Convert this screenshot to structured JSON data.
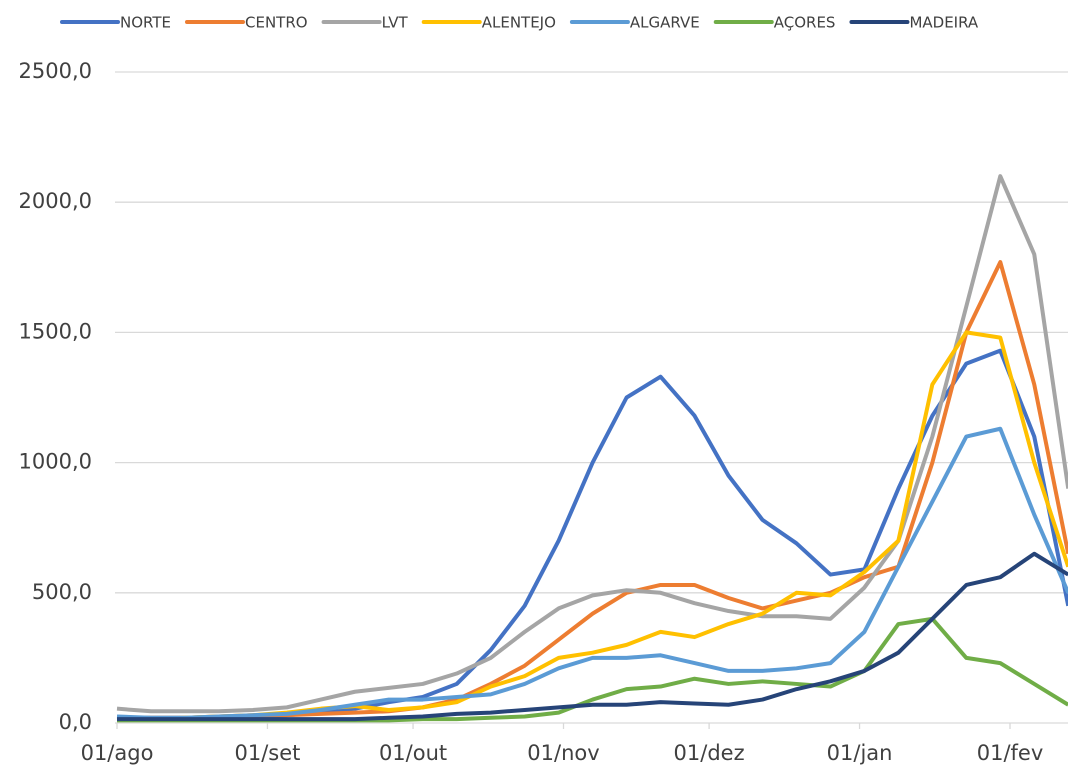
{
  "chart_data": {
    "type": "line",
    "x": [
      0,
      7,
      14,
      21,
      28,
      35,
      42,
      49,
      56,
      63,
      70,
      77,
      84,
      91,
      98,
      105,
      112,
      119,
      126,
      133,
      140,
      147,
      154,
      161,
      168,
      175,
      182,
      189,
      196
    ],
    "xlim": [
      0,
      196
    ],
    "xticks": [
      {
        "value": 0,
        "label": "01/ago"
      },
      {
        "value": 31,
        "label": "01/set"
      },
      {
        "value": 61,
        "label": "01/out"
      },
      {
        "value": 92,
        "label": "01/nov"
      },
      {
        "value": 122,
        "label": "01/dez"
      },
      {
        "value": 153,
        "label": "01/jan"
      },
      {
        "value": 184,
        "label": "01/fev"
      }
    ],
    "ylim": [
      0,
      2500
    ],
    "yticks": [
      {
        "value": 0,
        "label": "0,0"
      },
      {
        "value": 500,
        "label": "500,0"
      },
      {
        "value": 1000,
        "label": "1000,0"
      },
      {
        "value": 1500,
        "label": "1500,0"
      },
      {
        "value": 2000,
        "label": "2000,0"
      },
      {
        "value": 2500,
        "label": "2500,0"
      }
    ],
    "grid": true,
    "legend": "top",
    "series": [
      {
        "name": "NORTE",
        "color": "#4472c4",
        "values": [
          20,
          20,
          20,
          20,
          25,
          30,
          40,
          55,
          80,
          100,
          150,
          280,
          450,
          700,
          1000,
          1250,
          1330,
          1180,
          950,
          780,
          690,
          570,
          590,
          900,
          1180,
          1380,
          1430,
          1100,
          450
        ]
      },
      {
        "name": "CENTRO",
        "color": "#ed7d31",
        "values": [
          20,
          20,
          20,
          25,
          30,
          30,
          35,
          40,
          45,
          60,
          90,
          150,
          220,
          320,
          420,
          500,
          530,
          530,
          480,
          440,
          470,
          500,
          560,
          600,
          1000,
          1500,
          1770,
          1300,
          650
        ]
      },
      {
        "name": "LVT",
        "color": "#a5a5a5",
        "values": [
          55,
          45,
          45,
          45,
          50,
          60,
          90,
          120,
          135,
          150,
          190,
          250,
          350,
          440,
          490,
          510,
          500,
          460,
          430,
          410,
          410,
          400,
          520,
          700,
          1100,
          1600,
          2100,
          1800,
          900
        ]
      },
      {
        "name": "ALENTEJO",
        "color": "#ffc000",
        "values": [
          15,
          15,
          20,
          25,
          30,
          40,
          55,
          65,
          50,
          60,
          80,
          140,
          180,
          250,
          270,
          300,
          350,
          330,
          380,
          420,
          500,
          490,
          580,
          700,
          1300,
          1500,
          1480,
          1000,
          600
        ]
      },
      {
        "name": "ALGARVE",
        "color": "#5b9bd5",
        "values": [
          25,
          20,
          20,
          25,
          30,
          35,
          50,
          70,
          90,
          90,
          100,
          110,
          150,
          210,
          250,
          250,
          260,
          230,
          200,
          200,
          210,
          230,
          350,
          600,
          850,
          1100,
          1130,
          800,
          500
        ]
      },
      {
        "name": "AÇORES",
        "color": "#70ad47",
        "values": [
          10,
          10,
          10,
          10,
          10,
          10,
          10,
          10,
          10,
          15,
          15,
          20,
          25,
          40,
          90,
          130,
          140,
          170,
          150,
          160,
          150,
          140,
          200,
          380,
          400,
          250,
          230,
          150,
          70
        ]
      },
      {
        "name": "MADEIRA",
        "color": "#264478",
        "values": [
          15,
          15,
          15,
          15,
          15,
          15,
          15,
          15,
          20,
          25,
          35,
          40,
          50,
          60,
          70,
          70,
          80,
          75,
          70,
          90,
          130,
          160,
          200,
          270,
          400,
          530,
          560,
          650,
          570
        ]
      }
    ]
  }
}
